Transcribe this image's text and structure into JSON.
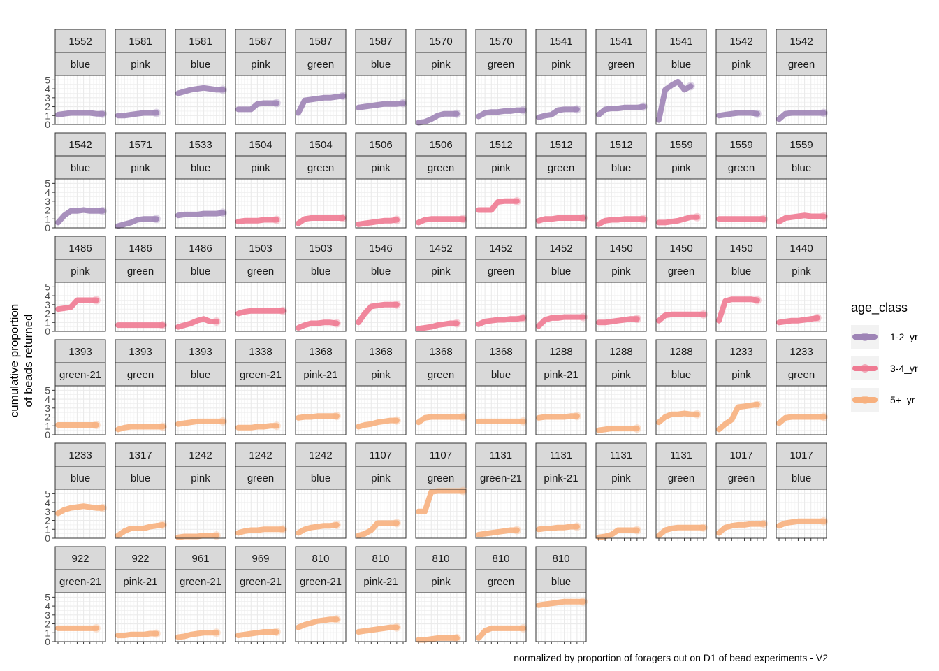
{
  "chart_data": {
    "type": "line",
    "ylabel": "cumulative proportion\nof beads returned",
    "caption": "normalized by proportion of foragers out on D1 of bead experiments - V2",
    "y_ticks": [
      "0",
      "1",
      "2",
      "3",
      "4",
      "5"
    ],
    "ylim": [
      0,
      5.5
    ],
    "n_x_ticks": 8,
    "grid": true,
    "legend": {
      "title": "age_class",
      "position": "right",
      "entries": [
        {
          "label": "1-2_yr",
          "color": "#9e84b6"
        },
        {
          "label": "3-4_yr",
          "color": "#ef7a92"
        },
        {
          "label": "5+_yr",
          "color": "#f7b07e"
        }
      ]
    },
    "panels": [
      {
        "id": "1552",
        "color": "blue",
        "age_class": "1-2_yr",
        "y": [
          1.1,
          1.2,
          1.3,
          1.3,
          1.3,
          1.3,
          1.2,
          1.2
        ]
      },
      {
        "id": "1581",
        "color": "pink",
        "age_class": "1-2_yr",
        "y": [
          1.0,
          1.0,
          1.1,
          1.2,
          1.3,
          1.3,
          1.3
        ]
      },
      {
        "id": "1581",
        "color": "blue",
        "age_class": "1-2_yr",
        "y": [
          3.5,
          3.7,
          3.9,
          4.0,
          4.1,
          4.0,
          3.9,
          3.9
        ]
      },
      {
        "id": "1587",
        "color": "pink",
        "age_class": "1-2_yr",
        "y": [
          1.7,
          1.7,
          1.7,
          2.3,
          2.4,
          2.4,
          2.4
        ]
      },
      {
        "id": "1587",
        "color": "green",
        "age_class": "1-2_yr",
        "y": [
          1.3,
          2.7,
          2.8,
          2.9,
          3.0,
          3.0,
          3.1,
          3.2
        ]
      },
      {
        "id": "1587",
        "color": "blue",
        "age_class": "1-2_yr",
        "y": [
          1.9,
          2.0,
          2.1,
          2.2,
          2.3,
          2.3,
          2.3,
          2.4
        ]
      },
      {
        "id": "1570",
        "color": "pink",
        "age_class": "1-2_yr",
        "y": [
          0.2,
          0.3,
          0.6,
          1.0,
          1.2,
          1.2,
          1.2
        ]
      },
      {
        "id": "1570",
        "color": "green",
        "age_class": "1-2_yr",
        "y": [
          0.9,
          1.3,
          1.4,
          1.4,
          1.5,
          1.5,
          1.6,
          1.6
        ]
      },
      {
        "id": "1541",
        "color": "pink",
        "age_class": "1-2_yr",
        "y": [
          0.8,
          1.0,
          1.1,
          1.6,
          1.7,
          1.7,
          1.7
        ]
      },
      {
        "id": "1541",
        "color": "green",
        "age_class": "1-2_yr",
        "y": [
          1.1,
          1.7,
          1.8,
          1.8,
          1.9,
          1.9,
          1.9,
          2.0
        ]
      },
      {
        "id": "1541",
        "color": "blue",
        "age_class": "1-2_yr",
        "y": [
          0.5,
          3.9,
          4.4,
          4.8,
          3.9,
          4.3
        ]
      },
      {
        "id": "1542",
        "color": "pink",
        "age_class": "1-2_yr",
        "y": [
          1.0,
          1.1,
          1.2,
          1.3,
          1.3,
          1.3,
          1.2
        ]
      },
      {
        "id": "1542",
        "color": "green",
        "age_class": "1-2_yr",
        "y": [
          0.6,
          1.2,
          1.3,
          1.3,
          1.3,
          1.3,
          1.3,
          1.3
        ]
      },
      {
        "id": "1542",
        "color": "blue",
        "age_class": "1-2_yr",
        "y": [
          0.6,
          1.4,
          1.9,
          1.9,
          2.0,
          1.9,
          1.9,
          1.9
        ]
      },
      {
        "id": "1571",
        "color": "pink",
        "age_class": "1-2_yr",
        "y": [
          0.2,
          0.4,
          0.6,
          0.9,
          1.0,
          1.0,
          1.0
        ]
      },
      {
        "id": "1533",
        "color": "blue",
        "age_class": "1-2_yr",
        "y": [
          1.4,
          1.5,
          1.5,
          1.5,
          1.6,
          1.6,
          1.6,
          1.7
        ]
      },
      {
        "id": "1504",
        "color": "pink",
        "age_class": "3-4_yr",
        "y": [
          0.7,
          0.8,
          0.8,
          0.8,
          0.9,
          0.9,
          0.9
        ]
      },
      {
        "id": "1504",
        "color": "green",
        "age_class": "3-4_yr",
        "y": [
          0.5,
          1.0,
          1.1,
          1.1,
          1.1,
          1.1,
          1.1,
          1.1
        ]
      },
      {
        "id": "1506",
        "color": "pink",
        "age_class": "3-4_yr",
        "y": [
          0.4,
          0.5,
          0.6,
          0.7,
          0.8,
          0.8,
          0.9
        ]
      },
      {
        "id": "1506",
        "color": "green",
        "age_class": "3-4_yr",
        "y": [
          0.6,
          0.9,
          1.0,
          1.0,
          1.0,
          1.0,
          1.0,
          1.0
        ]
      },
      {
        "id": "1512",
        "color": "pink",
        "age_class": "3-4_yr",
        "y": [
          2.0,
          2.0,
          2.0,
          2.9,
          3.0,
          3.0,
          3.0
        ]
      },
      {
        "id": "1512",
        "color": "green",
        "age_class": "3-4_yr",
        "y": [
          0.8,
          1.0,
          1.0,
          1.1,
          1.1,
          1.1,
          1.1,
          1.1
        ]
      },
      {
        "id": "1512",
        "color": "blue",
        "age_class": "3-4_yr",
        "y": [
          0.4,
          0.8,
          0.9,
          0.9,
          1.0,
          1.0,
          1.0,
          1.0
        ]
      },
      {
        "id": "1559",
        "color": "pink",
        "age_class": "3-4_yr",
        "y": [
          0.6,
          0.6,
          0.7,
          0.8,
          1.0,
          1.2,
          1.2
        ]
      },
      {
        "id": "1559",
        "color": "green",
        "age_class": "3-4_yr",
        "y": [
          1.0,
          1.0,
          1.0,
          1.0,
          1.0,
          1.0,
          1.0,
          1.0
        ]
      },
      {
        "id": "1559",
        "color": "blue",
        "age_class": "3-4_yr",
        "y": [
          0.7,
          1.1,
          1.2,
          1.3,
          1.4,
          1.3,
          1.3,
          1.3
        ]
      },
      {
        "id": "1486",
        "color": "pink",
        "age_class": "3-4_yr",
        "y": [
          2.5,
          2.6,
          2.7,
          3.5,
          3.5,
          3.5,
          3.5
        ]
      },
      {
        "id": "1486",
        "color": "green",
        "age_class": "3-4_yr",
        "y": [
          0.7,
          0.7,
          0.7,
          0.7,
          0.7,
          0.7,
          0.7,
          0.7
        ]
      },
      {
        "id": "1486",
        "color": "blue",
        "age_class": "3-4_yr",
        "y": [
          0.5,
          0.7,
          0.9,
          1.2,
          1.4,
          1.1,
          1.1
        ]
      },
      {
        "id": "1503",
        "color": "green",
        "age_class": "3-4_yr",
        "y": [
          2.0,
          2.2,
          2.3,
          2.3,
          2.3,
          2.3,
          2.3,
          2.3
        ]
      },
      {
        "id": "1503",
        "color": "blue",
        "age_class": "3-4_yr",
        "y": [
          0.4,
          0.7,
          0.9,
          0.9,
          1.0,
          1.0,
          0.9
        ]
      },
      {
        "id": "1546",
        "color": "blue",
        "age_class": "3-4_yr",
        "y": [
          1.0,
          2.0,
          2.8,
          2.9,
          3.0,
          3.0,
          3.0
        ]
      },
      {
        "id": "1452",
        "color": "pink",
        "age_class": "3-4_yr",
        "y": [
          0.3,
          0.4,
          0.5,
          0.7,
          0.8,
          0.9,
          0.9
        ]
      },
      {
        "id": "1452",
        "color": "green",
        "age_class": "3-4_yr",
        "y": [
          0.8,
          1.1,
          1.2,
          1.3,
          1.3,
          1.4,
          1.4,
          1.5
        ]
      },
      {
        "id": "1452",
        "color": "blue",
        "age_class": "3-4_yr",
        "y": [
          0.6,
          1.3,
          1.5,
          1.5,
          1.6,
          1.6,
          1.6,
          1.6
        ]
      },
      {
        "id": "1450",
        "color": "pink",
        "age_class": "3-4_yr",
        "y": [
          1.0,
          1.0,
          1.1,
          1.2,
          1.3,
          1.4,
          1.4
        ]
      },
      {
        "id": "1450",
        "color": "green",
        "age_class": "3-4_yr",
        "y": [
          1.2,
          1.8,
          1.9,
          1.9,
          1.9,
          1.9,
          1.9,
          1.9
        ]
      },
      {
        "id": "1450",
        "color": "blue",
        "age_class": "3-4_yr",
        "y": [
          1.2,
          3.4,
          3.6,
          3.6,
          3.6,
          3.6,
          3.5
        ]
      },
      {
        "id": "1440",
        "color": "pink",
        "age_class": "3-4_yr",
        "y": [
          1.0,
          1.1,
          1.2,
          1.2,
          1.3,
          1.4,
          1.5
        ]
      },
      {
        "id": "1393",
        "color": "green-21",
        "age_class": "5+_yr",
        "y": [
          1.1,
          1.1,
          1.1,
          1.1,
          1.1,
          1.1,
          1.1
        ]
      },
      {
        "id": "1393",
        "color": "green",
        "age_class": "5+_yr",
        "y": [
          0.6,
          0.8,
          0.9,
          0.9,
          0.9,
          0.9,
          0.9,
          0.9
        ]
      },
      {
        "id": "1393",
        "color": "blue",
        "age_class": "5+_yr",
        "y": [
          1.2,
          1.3,
          1.4,
          1.5,
          1.5,
          1.5,
          1.5,
          1.5
        ]
      },
      {
        "id": "1338",
        "color": "green-21",
        "age_class": "5+_yr",
        "y": [
          0.8,
          0.8,
          0.8,
          0.9,
          0.9,
          1.0,
          1.0
        ]
      },
      {
        "id": "1368",
        "color": "pink-21",
        "age_class": "5+_yr",
        "y": [
          1.9,
          2.0,
          2.0,
          2.1,
          2.1,
          2.1,
          2.1
        ]
      },
      {
        "id": "1368",
        "color": "pink",
        "age_class": "5+_yr",
        "y": [
          0.9,
          1.1,
          1.2,
          1.4,
          1.5,
          1.6,
          1.6
        ]
      },
      {
        "id": "1368",
        "color": "green",
        "age_class": "5+_yr",
        "y": [
          1.4,
          1.9,
          2.0,
          2.0,
          2.0,
          2.0,
          2.0,
          2.0
        ]
      },
      {
        "id": "1368",
        "color": "blue",
        "age_class": "5+_yr",
        "y": [
          1.5,
          1.5,
          1.5,
          1.5,
          1.5,
          1.5,
          1.5,
          1.5
        ]
      },
      {
        "id": "1288",
        "color": "pink-21",
        "age_class": "5+_yr",
        "y": [
          1.9,
          2.0,
          2.0,
          2.0,
          2.0,
          2.1,
          2.1
        ]
      },
      {
        "id": "1288",
        "color": "pink",
        "age_class": "5+_yr",
        "y": [
          0.5,
          0.6,
          0.7,
          0.7,
          0.7,
          0.7,
          0.7
        ]
      },
      {
        "id": "1288",
        "color": "blue",
        "age_class": "5+_yr",
        "y": [
          1.4,
          2.0,
          2.3,
          2.3,
          2.4,
          2.3,
          2.3
        ]
      },
      {
        "id": "1233",
        "color": "pink",
        "age_class": "5+_yr",
        "y": [
          0.6,
          1.2,
          1.7,
          3.1,
          3.2,
          3.3,
          3.4
        ]
      },
      {
        "id": "1233",
        "color": "green",
        "age_class": "5+_yr",
        "y": [
          1.3,
          1.9,
          2.0,
          2.0,
          2.0,
          2.0,
          2.0,
          2.0
        ]
      },
      {
        "id": "1233",
        "color": "blue",
        "age_class": "5+_yr",
        "y": [
          2.8,
          3.2,
          3.4,
          3.5,
          3.6,
          3.5,
          3.4,
          3.4
        ]
      },
      {
        "id": "1317",
        "color": "blue",
        "age_class": "5+_yr",
        "y": [
          0.3,
          0.8,
          1.1,
          1.1,
          1.1,
          1.3,
          1.4,
          1.5
        ]
      },
      {
        "id": "1242",
        "color": "pink",
        "age_class": "5+_yr",
        "y": [
          0.1,
          0.2,
          0.2,
          0.2,
          0.3,
          0.3,
          0.3
        ]
      },
      {
        "id": "1242",
        "color": "green",
        "age_class": "5+_yr",
        "y": [
          0.6,
          0.8,
          0.9,
          0.9,
          1.0,
          1.0,
          1.0,
          1.0
        ]
      },
      {
        "id": "1242",
        "color": "blue",
        "age_class": "5+_yr",
        "y": [
          0.6,
          1.0,
          1.2,
          1.3,
          1.4,
          1.4,
          1.5
        ]
      },
      {
        "id": "1107",
        "color": "pink",
        "age_class": "5+_yr",
        "y": [
          0.3,
          0.5,
          0.9,
          1.7,
          1.7,
          1.7,
          1.7
        ]
      },
      {
        "id": "1107",
        "color": "green",
        "age_class": "5+_yr",
        "y": [
          3.0,
          3.0,
          5.2,
          5.3,
          5.3,
          5.3,
          5.3,
          5.3
        ]
      },
      {
        "id": "1131",
        "color": "green-21",
        "age_class": "5+_yr",
        "y": [
          0.4,
          0.5,
          0.6,
          0.7,
          0.8,
          0.9,
          0.9
        ]
      },
      {
        "id": "1131",
        "color": "pink-21",
        "age_class": "5+_yr",
        "y": [
          1.0,
          1.1,
          1.1,
          1.2,
          1.2,
          1.3,
          1.3
        ]
      },
      {
        "id": "1131",
        "color": "pink",
        "age_class": "5+_yr",
        "y": [
          0.1,
          0.2,
          0.4,
          0.9,
          0.9,
          0.9,
          0.9
        ]
      },
      {
        "id": "1131",
        "color": "green",
        "age_class": "5+_yr",
        "y": [
          0.3,
          0.9,
          1.1,
          1.2,
          1.2,
          1.2,
          1.2,
          1.2
        ]
      },
      {
        "id": "1017",
        "color": "green",
        "age_class": "5+_yr",
        "y": [
          0.6,
          1.2,
          1.4,
          1.5,
          1.5,
          1.6,
          1.6,
          1.6
        ]
      },
      {
        "id": "1017",
        "color": "blue",
        "age_class": "5+_yr",
        "y": [
          1.4,
          1.7,
          1.8,
          1.9,
          1.9,
          1.9,
          1.9,
          1.9
        ]
      },
      {
        "id": "922",
        "color": "green-21",
        "age_class": "5+_yr",
        "y": [
          1.5,
          1.5,
          1.5,
          1.5,
          1.5,
          1.5,
          1.5
        ]
      },
      {
        "id": "922",
        "color": "pink-21",
        "age_class": "5+_yr",
        "y": [
          0.7,
          0.7,
          0.8,
          0.8,
          0.8,
          0.9,
          0.9
        ]
      },
      {
        "id": "961",
        "color": "green-21",
        "age_class": "5+_yr",
        "y": [
          0.5,
          0.6,
          0.8,
          0.9,
          1.0,
          1.0,
          1.0
        ]
      },
      {
        "id": "969",
        "color": "green-21",
        "age_class": "5+_yr",
        "y": [
          0.7,
          0.8,
          0.9,
          1.0,
          1.1,
          1.1,
          1.1
        ]
      },
      {
        "id": "810",
        "color": "green-21",
        "age_class": "5+_yr",
        "y": [
          1.6,
          1.9,
          2.1,
          2.3,
          2.4,
          2.5,
          2.5
        ]
      },
      {
        "id": "810",
        "color": "pink-21",
        "age_class": "5+_yr",
        "y": [
          1.1,
          1.2,
          1.3,
          1.4,
          1.5,
          1.6,
          1.6
        ]
      },
      {
        "id": "810",
        "color": "pink",
        "age_class": "5+_yr",
        "y": [
          0.2,
          0.2,
          0.3,
          0.4,
          0.4,
          0.4,
          0.4
        ]
      },
      {
        "id": "810",
        "color": "green",
        "age_class": "5+_yr",
        "y": [
          0.4,
          1.2,
          1.5,
          1.5,
          1.5,
          1.5,
          1.5,
          1.5
        ]
      },
      {
        "id": "810",
        "color": "blue",
        "age_class": "5+_yr",
        "y": [
          4.1,
          4.2,
          4.3,
          4.4,
          4.5,
          4.5,
          4.5,
          4.5
        ]
      }
    ]
  }
}
